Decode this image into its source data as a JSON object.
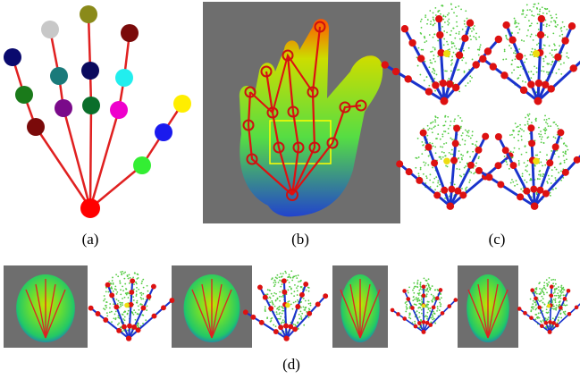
{
  "figure": {
    "labels": {
      "a": "(a)",
      "b": "(b)",
      "c": "(c)",
      "d": "(d)"
    }
  }
}
